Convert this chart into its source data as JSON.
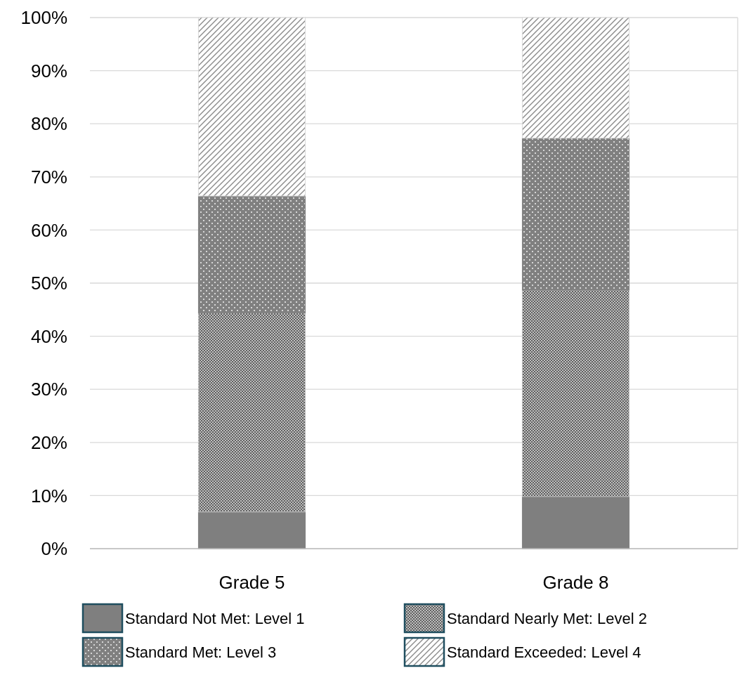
{
  "chart_data": {
    "type": "bar",
    "stacked": true,
    "categories": [
      "Grade 5",
      "Grade 8"
    ],
    "series": [
      {
        "name": "Standard Not Met: Level 1",
        "color": "#7f7f7f",
        "values": [
          6.9,
          9.8
        ]
      },
      {
        "name": "Standard Nearly Met: Level 2",
        "color": "#bfbfbf",
        "values": [
          37.5,
          38.9
        ]
      },
      {
        "name": "Standard Met: Level 3",
        "color": "#808080",
        "values": [
          22.0,
          28.6
        ]
      },
      {
        "name": "Standard Exceeded: Level 4",
        "color": "#d9d9d9",
        "values": [
          33.6,
          22.7
        ]
      }
    ],
    "ylim": [
      0,
      100
    ],
    "yticks": [
      {
        "value": 0,
        "label": "0%"
      },
      {
        "value": 10,
        "label": "10%"
      },
      {
        "value": 20,
        "label": "20%"
      },
      {
        "value": 30,
        "label": "30%"
      },
      {
        "value": 40,
        "label": "40%"
      },
      {
        "value": 50,
        "label": "50%"
      },
      {
        "value": 60,
        "label": "60%"
      },
      {
        "value": 70,
        "label": "70%"
      },
      {
        "value": 80,
        "label": "80%"
      },
      {
        "value": 90,
        "label": "90%"
      },
      {
        "value": 100,
        "label": "100%"
      }
    ],
    "grid": "y",
    "legend": "bottom"
  }
}
